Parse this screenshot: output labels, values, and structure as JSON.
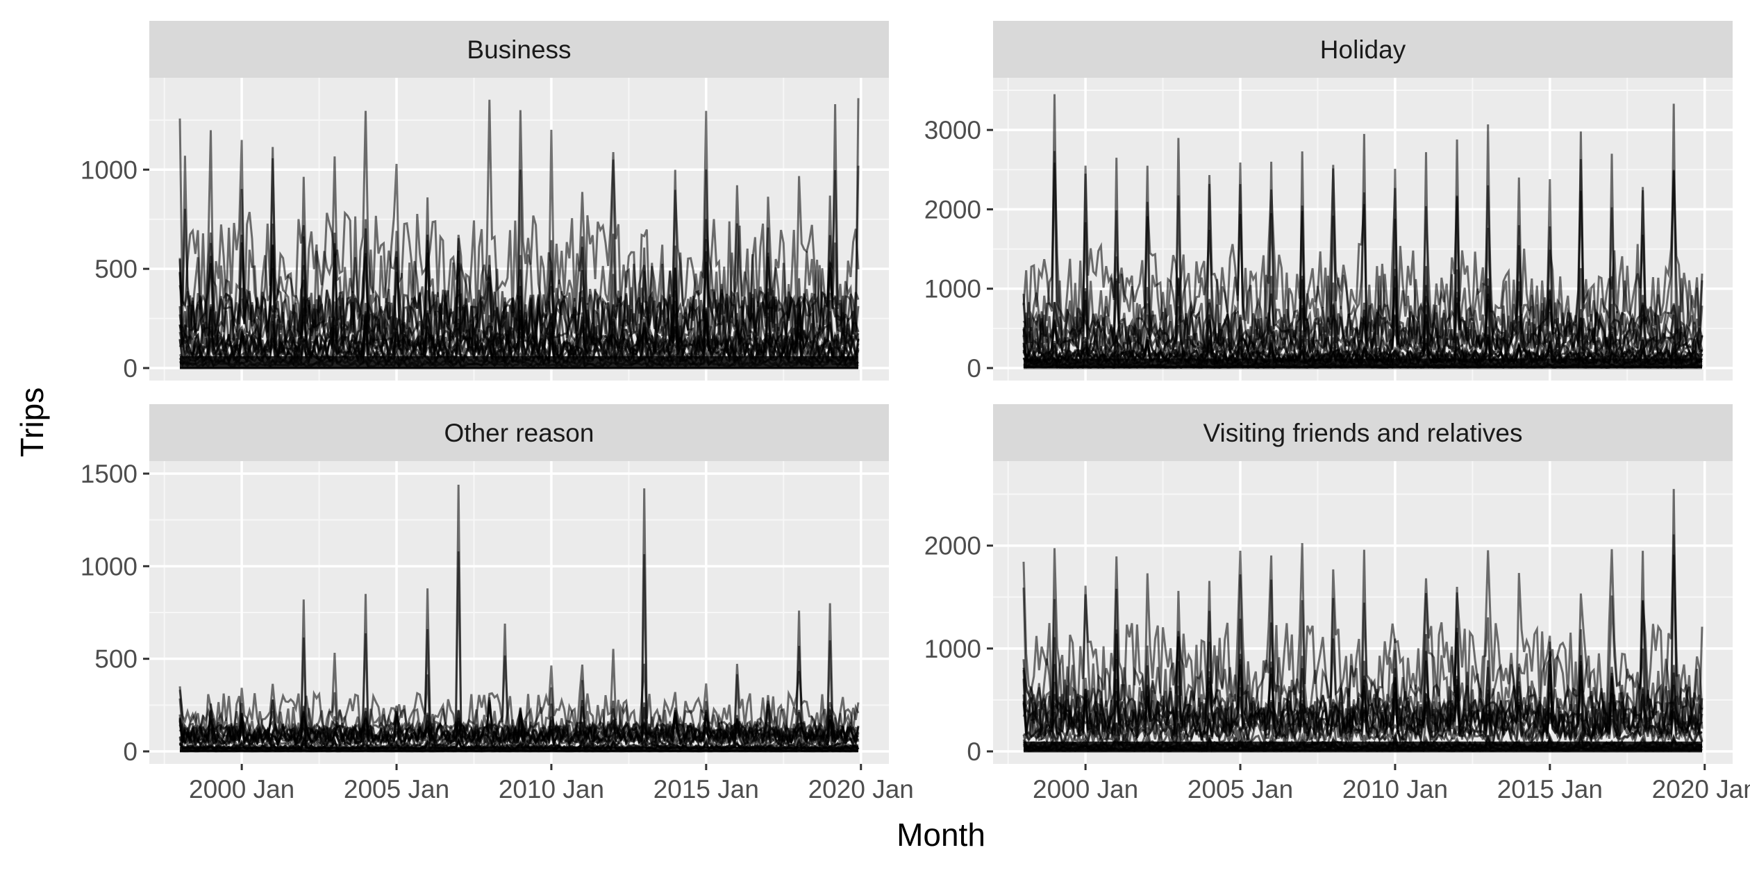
{
  "chart_data": {
    "type": "line",
    "description_units": "Trips per month, many overlapping regional series per purpose",
    "ylabel": "Trips",
    "xlabel": "Month",
    "x_range": [
      "1998 Jan",
      "2019 Dec"
    ],
    "x_ticks": [
      "2000 Jan",
      "2005 Jan",
      "2010 Jan",
      "2015 Jan",
      "2020 Jan"
    ],
    "line_color": "#000000",
    "panels": [
      {
        "title": "Business",
        "ylim": [
          0,
          1400
        ],
        "y_ticks": [
          0,
          500,
          1000
        ],
        "max_peak": 1360,
        "typical_upper_band": 500,
        "notable_peaks": [
          {
            "x": "1998 Mar",
            "y": 1070
          },
          {
            "x": "2004 Jan",
            "y": 750
          },
          {
            "x": "2006 Jan",
            "y": 860
          },
          {
            "x": "2015 Jan",
            "y": 1000
          },
          {
            "x": "2019 Mar",
            "y": 1330
          },
          {
            "x": "2019 Dec",
            "y": 1360
          }
        ]
      },
      {
        "title": "Holiday",
        "ylim": [
          0,
          3500
        ],
        "y_ticks": [
          0,
          1000,
          2000,
          3000
        ],
        "max_peak": 3450,
        "typical_upper_band": 1000,
        "notable_peaks": [
          {
            "x": "1999 Jan",
            "y": 3450
          },
          {
            "x": "2000 Jan",
            "y": 2450
          },
          {
            "x": "2001 Jan",
            "y": 2650
          },
          {
            "x": "2002 Jan",
            "y": 2550
          },
          {
            "x": "2003 Jan",
            "y": 2900
          },
          {
            "x": "2004 Jan",
            "y": 2320
          },
          {
            "x": "2005 Jan",
            "y": 2590
          },
          {
            "x": "2006 Jan",
            "y": 2600
          },
          {
            "x": "2007 Jan",
            "y": 2730
          },
          {
            "x": "2008 Jan",
            "y": 2560
          },
          {
            "x": "2009 Jan",
            "y": 2950
          },
          {
            "x": "2010 Jan",
            "y": 2510
          },
          {
            "x": "2011 Jan",
            "y": 2720
          },
          {
            "x": "2012 Jan",
            "y": 2880
          },
          {
            "x": "2013 Jan",
            "y": 3070
          },
          {
            "x": "2014 Jan",
            "y": 2400
          },
          {
            "x": "2015 Jan",
            "y": 2380
          },
          {
            "x": "2016 Jan",
            "y": 2980
          },
          {
            "x": "2017 Jan",
            "y": 2700
          },
          {
            "x": "2018 Jan",
            "y": 2240
          },
          {
            "x": "2019 Jan",
            "y": 3330
          }
        ]
      },
      {
        "title": "Other reason",
        "ylim": [
          0,
          1500
        ],
        "y_ticks": [
          0,
          500,
          1000,
          1500
        ],
        "max_peak": 1440,
        "typical_upper_band": 200,
        "notable_peaks": [
          {
            "x": "2002 Jan",
            "y": 820
          },
          {
            "x": "2004 Jan",
            "y": 850
          },
          {
            "x": "2006 Jan",
            "y": 880
          },
          {
            "x": "2007 Jan",
            "y": 1440
          },
          {
            "x": "2008 Jul",
            "y": 690
          },
          {
            "x": "2013 Jan",
            "y": 1420
          },
          {
            "x": "2018 Jan",
            "y": 760
          },
          {
            "x": "2019 Jan",
            "y": 800
          }
        ]
      },
      {
        "title": "Visiting friends and relatives",
        "ylim": [
          0,
          2700
        ],
        "y_ticks": [
          0,
          1000,
          2000
        ],
        "max_peak": 2550,
        "typical_upper_band": 800,
        "notable_peaks": [
          {
            "x": "1999 Jan",
            "y": 1480
          },
          {
            "x": "2001 Jan",
            "y": 1580
          },
          {
            "x": "2003 Jan",
            "y": 1560
          },
          {
            "x": "2005 Jan",
            "y": 1720
          },
          {
            "x": "2006 Jan",
            "y": 1670
          },
          {
            "x": "2012 Jan",
            "y": 1600
          },
          {
            "x": "2018 Jan",
            "y": 1950
          },
          {
            "x": "2019 Jan",
            "y": 2550
          }
        ]
      }
    ]
  }
}
